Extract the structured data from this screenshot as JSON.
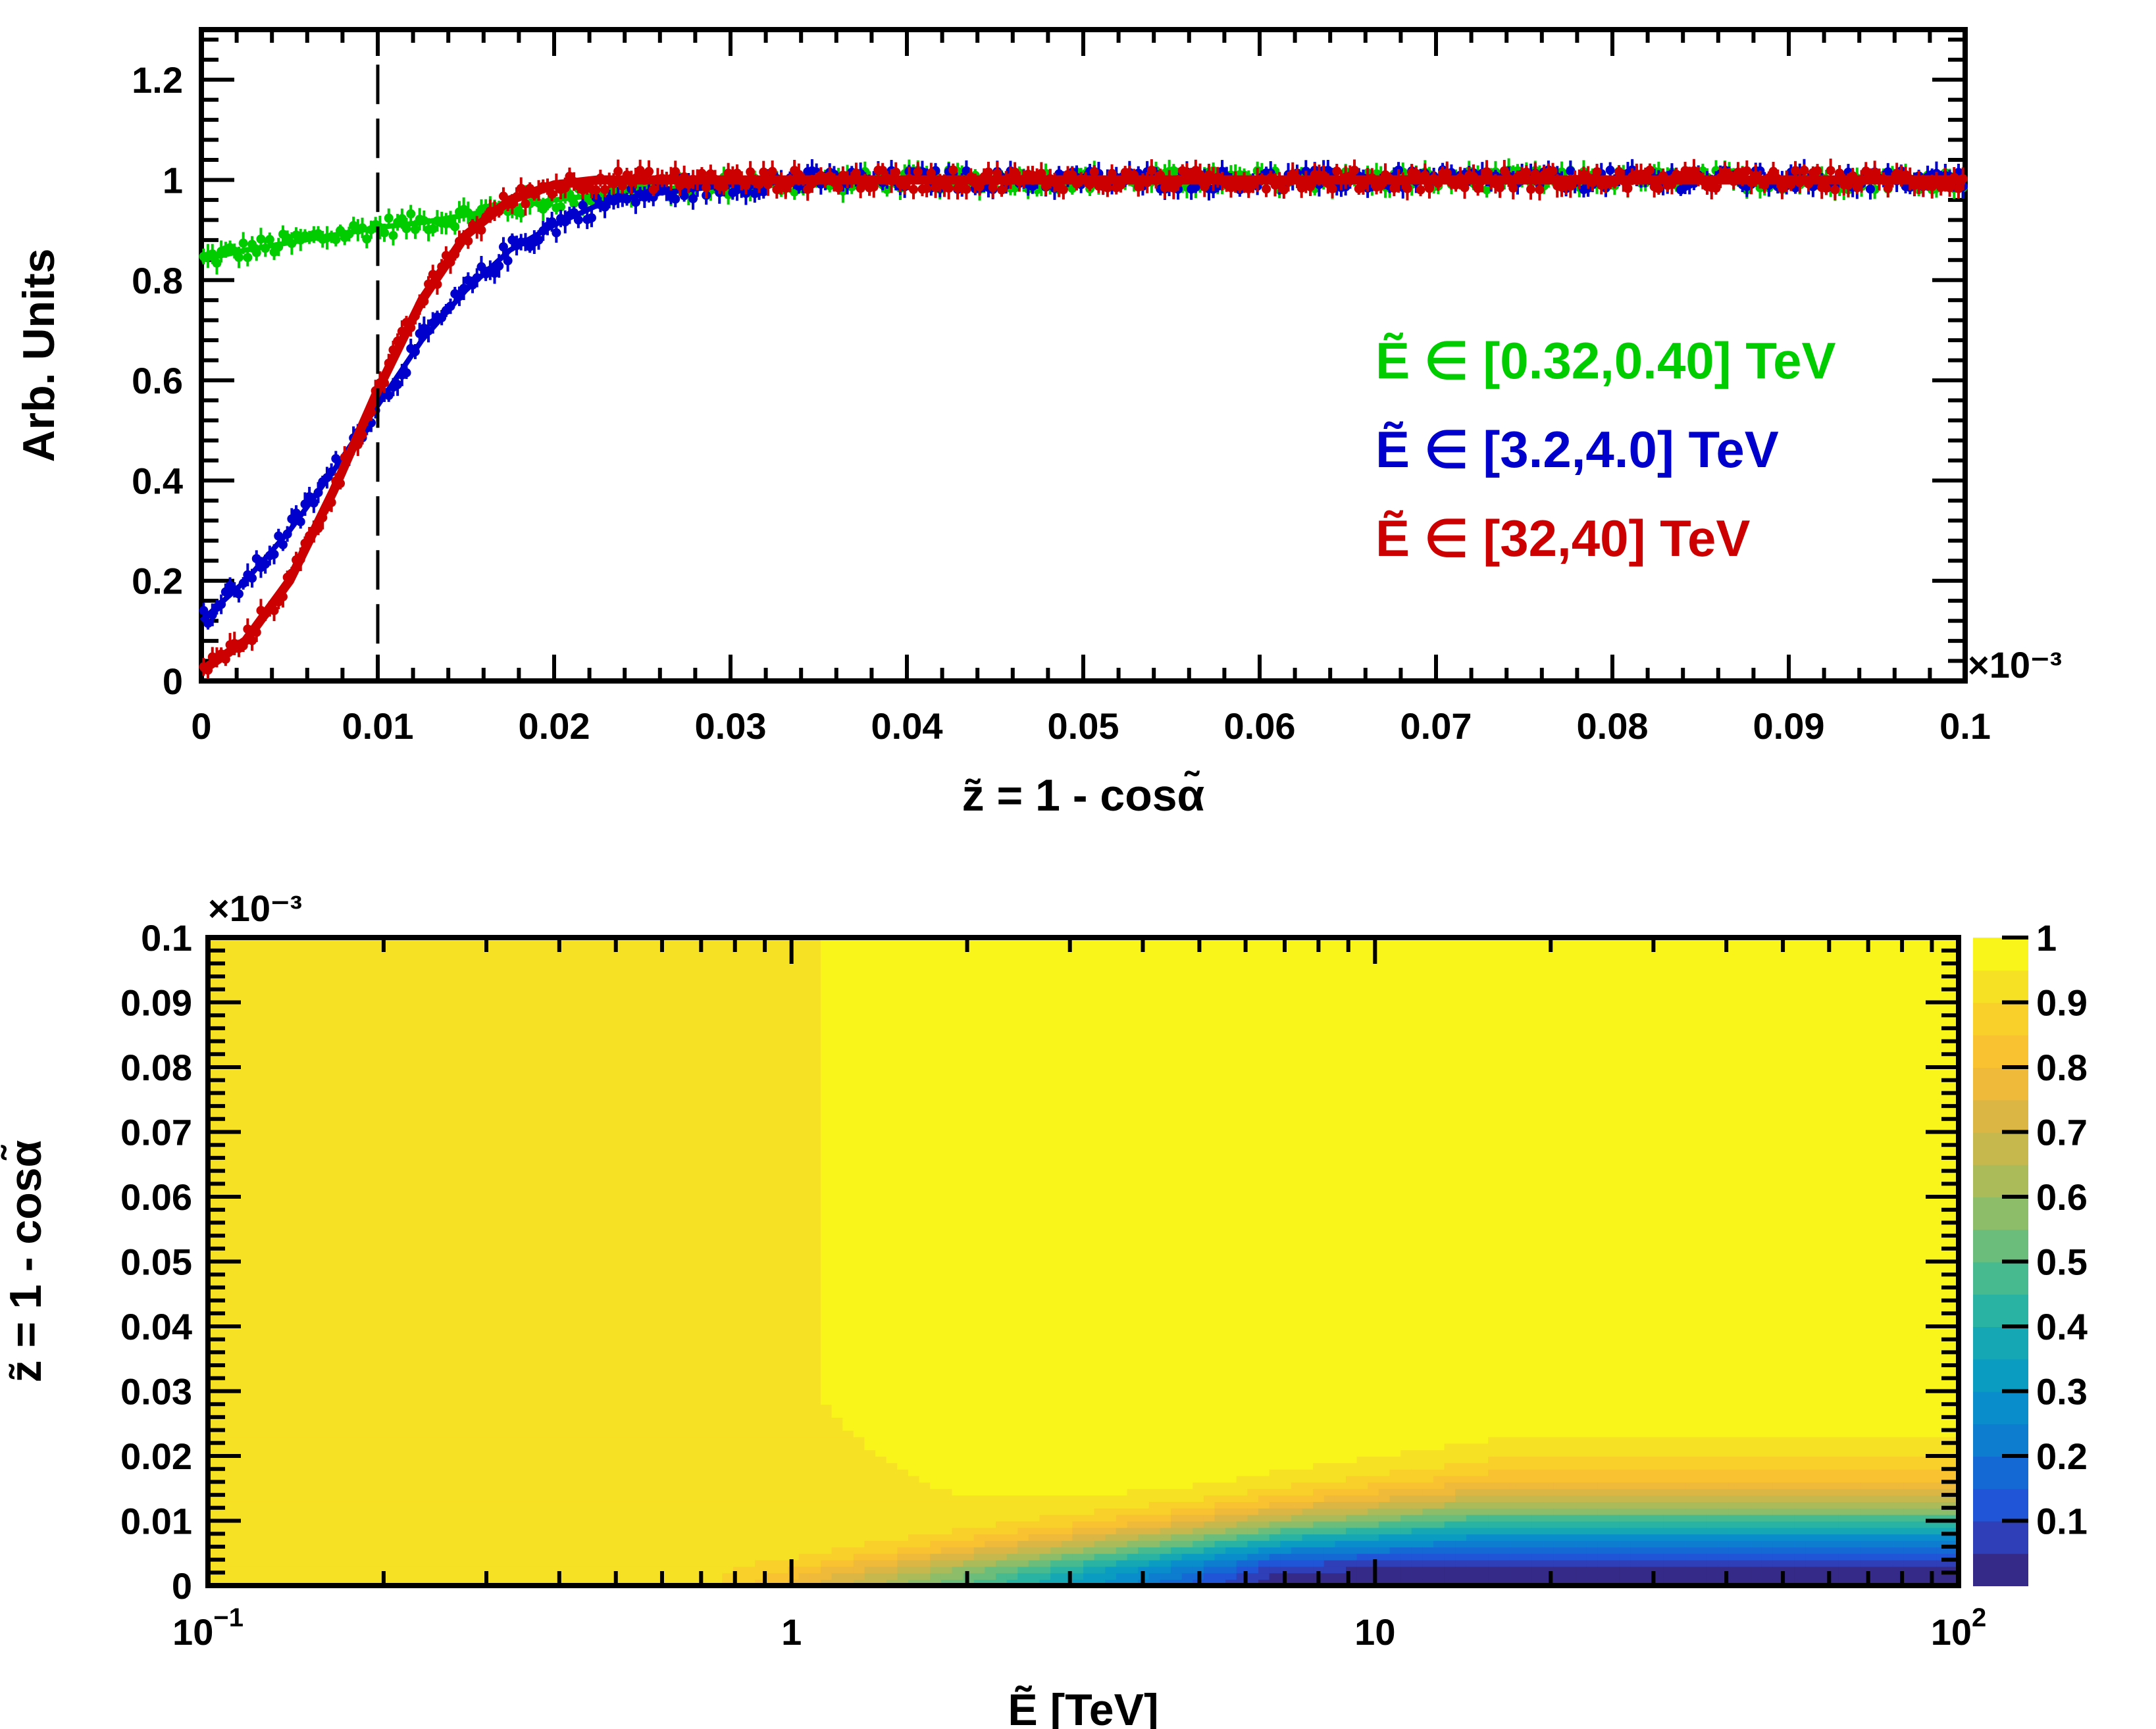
{
  "chart_data": [
    {
      "type": "scatter",
      "title": "",
      "xlabel": "z̃ = 1 - cosα̃",
      "ylabel": "Arb. Units",
      "xlim": [
        0,
        0.1
      ],
      "ylim": [
        0,
        1.3
      ],
      "x_multiplier": "×10⁻³",
      "x_ticks": [
        "0",
        "0.01",
        "0.02",
        "0.03",
        "0.04",
        "0.05",
        "0.06",
        "0.07",
        "0.08",
        "0.09",
        "0.1"
      ],
      "y_ticks": [
        "0",
        "0.2",
        "0.4",
        "0.6",
        "0.8",
        "1",
        "1.2"
      ],
      "vertical_marker_x": 0.01,
      "x": [
        0,
        0.0025,
        0.005,
        0.0075,
        0.01,
        0.0125,
        0.015,
        0.0175,
        0.02,
        0.0225,
        0.025,
        0.03,
        0.035,
        0.04,
        0.05,
        0.06,
        0.07,
        0.08,
        0.09,
        0.1
      ],
      "series": [
        {
          "name": "Ẽ ∈ [0.32,0.40] TeV",
          "color": "#00cc00",
          "values": [
            0.84,
            0.86,
            0.875,
            0.89,
            0.905,
            0.915,
            0.93,
            0.945,
            0.96,
            0.97,
            0.98,
            0.99,
            0.995,
            1.0,
            1.0,
            1.0,
            1.0,
            1.0,
            1.0,
            1.0
          ]
        },
        {
          "name": "Ẽ ∈ [3.2,4.0] TeV",
          "color": "#0000cc",
          "values": [
            0.12,
            0.2,
            0.3,
            0.42,
            0.55,
            0.68,
            0.78,
            0.86,
            0.91,
            0.95,
            0.97,
            0.99,
            1.0,
            1.0,
            1.0,
            1.0,
            1.0,
            1.0,
            1.0,
            1.0
          ]
        },
        {
          "name": "Ẽ ∈ [32,40] TeV",
          "color": "#cc0000",
          "values": [
            0.02,
            0.08,
            0.2,
            0.38,
            0.58,
            0.76,
            0.89,
            0.96,
            0.99,
            1.0,
            1.0,
            1.0,
            1.0,
            1.0,
            1.0,
            1.0,
            1.0,
            1.0,
            1.0,
            1.0
          ]
        }
      ]
    },
    {
      "type": "heatmap",
      "title": "",
      "xlabel": "Ẽ [TeV]",
      "ylabel": "z̃ = 1 - cosα̃",
      "x_scale": "log",
      "xlim": [
        0.1,
        100
      ],
      "ylim": [
        0,
        0.1
      ],
      "y_multiplier": "×10⁻³",
      "x_ticks": [
        {
          "base": "10",
          "exp": "−1"
        },
        {
          "base": "1",
          "exp": ""
        },
        {
          "base": "10",
          "exp": ""
        },
        {
          "base": "10",
          "exp": "2"
        }
      ],
      "y_ticks": [
        "0",
        "0.01",
        "0.02",
        "0.03",
        "0.04",
        "0.05",
        "0.06",
        "0.07",
        "0.08",
        "0.09",
        "0.1"
      ],
      "zlim": [
        0,
        1
      ],
      "z_ticks": [
        "0.1",
        "0.2",
        "0.3",
        "0.4",
        "0.5",
        "0.6",
        "0.7",
        "0.8",
        "0.9",
        "1"
      ],
      "description_levels": "value approaches 1 at large z̃; drops toward 0 at small z̃ for Ẽ above ~1 TeV"
    }
  ]
}
